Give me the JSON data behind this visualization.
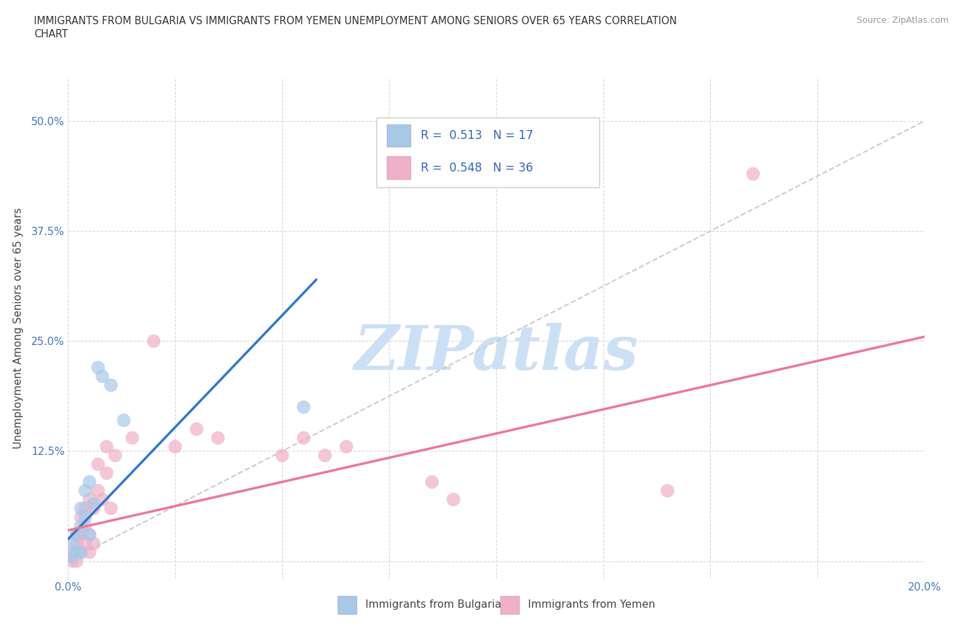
{
  "title_line1": "IMMIGRANTS FROM BULGARIA VS IMMIGRANTS FROM YEMEN UNEMPLOYMENT AMONG SENIORS OVER 65 YEARS CORRELATION",
  "title_line2": "CHART",
  "source": "Source: ZipAtlas.com",
  "ylabel": "Unemployment Among Seniors over 65 years",
  "xlim": [
    0.0,
    0.2
  ],
  "ylim": [
    -0.02,
    0.55
  ],
  "xticks": [
    0.0,
    0.025,
    0.05,
    0.075,
    0.1,
    0.125,
    0.15,
    0.175,
    0.2
  ],
  "yticks": [
    0.0,
    0.125,
    0.25,
    0.375,
    0.5
  ],
  "bg_color": "#ffffff",
  "grid_color": "#d8d8d8",
  "watermark_text": "ZIPatlas",
  "watermark_color": "#cce0f5",
  "bulgaria_color": "#a8c8e8",
  "yemen_color": "#f0b0c8",
  "bulgaria_line_color": "#3377cc",
  "yemen_line_color": "#ee7799",
  "ref_line_color": "#cccccc",
  "legend_R_bulgaria": "0.513",
  "legend_N_bulgaria": "17",
  "legend_R_yemen": "0.548",
  "legend_N_yemen": "36",
  "bulgaria_x": [
    0.001,
    0.001,
    0.002,
    0.002,
    0.003,
    0.003,
    0.003,
    0.004,
    0.004,
    0.005,
    0.005,
    0.006,
    0.007,
    0.008,
    0.01,
    0.013,
    0.055
  ],
  "bulgaria_y": [
    0.005,
    0.02,
    0.01,
    0.03,
    0.01,
    0.04,
    0.06,
    0.05,
    0.08,
    0.03,
    0.09,
    0.065,
    0.22,
    0.21,
    0.2,
    0.16,
    0.175
  ],
  "yemen_x": [
    0.001,
    0.001,
    0.002,
    0.002,
    0.002,
    0.003,
    0.003,
    0.003,
    0.004,
    0.004,
    0.004,
    0.005,
    0.005,
    0.005,
    0.006,
    0.006,
    0.007,
    0.007,
    0.008,
    0.009,
    0.009,
    0.01,
    0.011,
    0.015,
    0.02,
    0.025,
    0.03,
    0.035,
    0.05,
    0.055,
    0.06,
    0.065,
    0.085,
    0.09,
    0.14,
    0.16
  ],
  "yemen_y": [
    0.0,
    0.01,
    0.0,
    0.02,
    0.03,
    0.01,
    0.03,
    0.05,
    0.02,
    0.04,
    0.06,
    0.01,
    0.03,
    0.07,
    0.02,
    0.06,
    0.08,
    0.11,
    0.07,
    0.1,
    0.13,
    0.06,
    0.12,
    0.14,
    0.25,
    0.13,
    0.15,
    0.14,
    0.12,
    0.14,
    0.12,
    0.13,
    0.09,
    0.07,
    0.08,
    0.44
  ],
  "bulgaria_line_x": [
    0.0,
    0.058
  ],
  "bulgaria_line_y": [
    0.025,
    0.32
  ],
  "yemen_line_x": [
    0.0,
    0.2
  ],
  "yemen_line_y": [
    0.035,
    0.255
  ],
  "ref_line_x": [
    0.0,
    0.2
  ],
  "ref_line_y": [
    0.0,
    0.5
  ]
}
